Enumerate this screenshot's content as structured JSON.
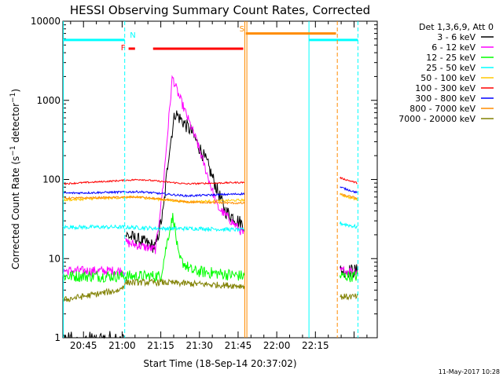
{
  "chart_data": {
    "type": "line",
    "title": "HESSI Observing Summary Count Rates, Corrected",
    "xlabel": "Start Time (18-Sep-14 20:37:02)",
    "ylabel": "Corrected Count Rate (s⁻¹ detector⁻¹)",
    "ylabel_main": "Corrected Count Rate (s",
    "ylabel_exp1": "−1",
    "ylabel_mid": " detector",
    "ylabel_exp2": "−1",
    "ylabel_end": ")",
    "yscale": "log",
    "ylim": [
      1,
      10000
    ],
    "xlim_minutes": [
      -8,
      114
    ],
    "x_ticks": [
      {
        "m": 0,
        "label": "20:45"
      },
      {
        "m": 15,
        "label": "21:00"
      },
      {
        "m": 30,
        "label": "21:15"
      },
      {
        "m": 45,
        "label": "21:30"
      },
      {
        "m": 60,
        "label": "21:45"
      },
      {
        "m": 75,
        "label": "22:00"
      },
      {
        "m": 90,
        "label": "22:15"
      }
    ],
    "y_ticks": [
      {
        "v": 1,
        "label": "1"
      },
      {
        "v": 10,
        "label": "10"
      },
      {
        "v": 100,
        "label": "100"
      },
      {
        "v": 1000,
        "label": "1000"
      },
      {
        "v": 10000,
        "label": "10000"
      }
    ],
    "legend_header": "Det 1,3,6,9, Att 0",
    "series": [
      {
        "name": "3 - 6 keV",
        "color": "#000000"
      },
      {
        "name": "6 - 12 keV",
        "color": "#ff00ff"
      },
      {
        "name": "12 - 25 keV",
        "color": "#00ff00"
      },
      {
        "name": "25 - 50 keV",
        "color": "#00ffff"
      },
      {
        "name": "50 - 100 keV",
        "color": "#ffc800"
      },
      {
        "name": "100 - 300 keV",
        "color": "#ff0000"
      },
      {
        "name": "300 - 800 keV",
        "color": "#0000ff"
      },
      {
        "name": "800 - 7000 keV",
        "color": "#ff8c00"
      },
      {
        "name": "7000 - 20000 keV",
        "color": "#808000"
      }
    ],
    "annotations": {
      "night_label": "N",
      "flare_label": "F",
      "saa_label": "S"
    },
    "footer_date": "11-May-2017 10:28"
  }
}
